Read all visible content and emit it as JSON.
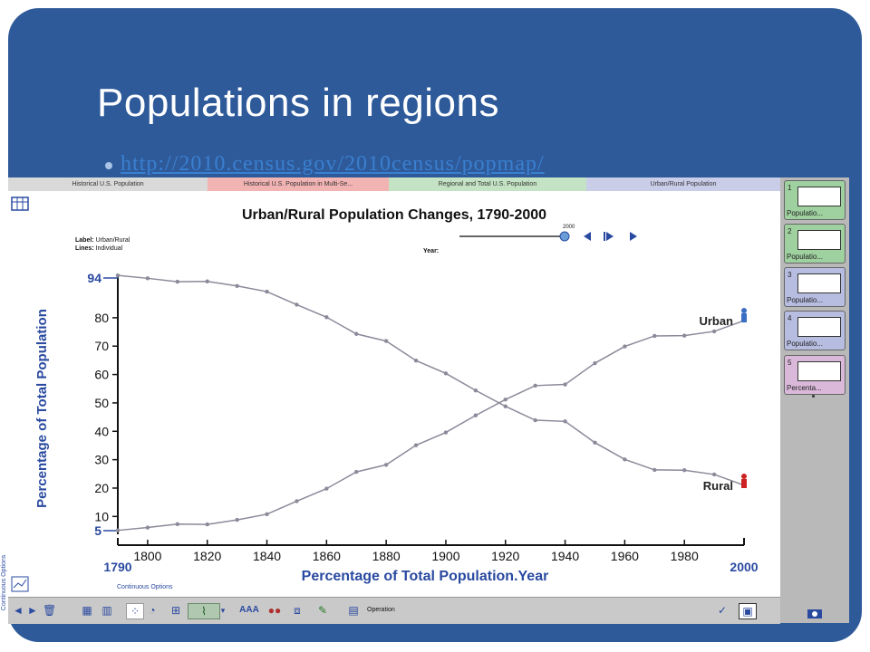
{
  "slide": {
    "title": "Populations in regions",
    "link": "http://2010.census.gov/2010census/popmap/"
  },
  "app": {
    "tabs": [
      {
        "label": "Historical U.S. Population",
        "color": "#d9d9d9"
      },
      {
        "label": "Historical U.S. Population in Multi-Se...",
        "color": "#f2b3b3"
      },
      {
        "label": "Regional and Total U.S. Population",
        "color": "#c4e3c4"
      },
      {
        "label": "Urban/Rural Population",
        "color": "#c9cde8"
      }
    ],
    "chart_info": {
      "label_key": "Label:",
      "label_value": "Urban/Rural",
      "lines_key": "Lines:",
      "lines_value": "Individual",
      "year_label": "Year:",
      "year_value": "2000"
    },
    "side_label": "Continuous Options",
    "bottom_options": "Continuous Options",
    "sidebar": [
      {
        "num": "1",
        "label": "Populatio...",
        "color": "#9fd09f"
      },
      {
        "num": "2",
        "label": "Populatio...",
        "color": "#9fd09f"
      },
      {
        "num": "3",
        "label": "Populatio...",
        "color": "#b7bde0"
      },
      {
        "num": "4",
        "label": "Populatio...",
        "color": "#b7bde0"
      },
      {
        "num": "5",
        "label": "Percenta...",
        "color": "#d9b8d9"
      }
    ],
    "toolbar": {
      "operation_label": "Operation"
    }
  },
  "chart_data": {
    "type": "line",
    "title": "Urban/Rural Population Changes, 1790-2000",
    "xlabel": "Percentage of Total Population.Year",
    "ylabel": "Percentage of Total Population",
    "xlim": [
      1790,
      2000
    ],
    "ylim": [
      5,
      94
    ],
    "x_ticks": [
      1800,
      1820,
      1840,
      1860,
      1880,
      1900,
      1920,
      1940,
      1960,
      1980
    ],
    "x_end_labels": [
      "1790",
      "2000"
    ],
    "y_ticks": [
      10,
      20,
      30,
      40,
      50,
      60,
      70,
      80
    ],
    "y_end_labels": [
      "5",
      "94"
    ],
    "x": [
      1790,
      1800,
      1810,
      1820,
      1830,
      1840,
      1850,
      1860,
      1870,
      1880,
      1890,
      1900,
      1910,
      1920,
      1930,
      1940,
      1950,
      1960,
      1970,
      1980,
      1990,
      2000
    ],
    "series": [
      {
        "name": "Urban",
        "color": "#3a6fc4",
        "values": [
          5.1,
          6.1,
          7.3,
          7.2,
          8.8,
          10.8,
          15.4,
          19.8,
          25.7,
          28.2,
          35.1,
          39.6,
          45.6,
          51.2,
          56.1,
          56.5,
          64.0,
          69.9,
          73.6,
          73.7,
          75.2,
          79.0
        ]
      },
      {
        "name": "Rural",
        "color": "#cc2222",
        "values": [
          94.9,
          93.9,
          92.7,
          92.8,
          91.2,
          89.2,
          84.6,
          80.2,
          74.3,
          71.8,
          64.9,
          60.4,
          54.4,
          48.8,
          43.9,
          43.5,
          36.0,
          30.1,
          26.4,
          26.3,
          24.8,
          21.0
        ]
      }
    ]
  }
}
